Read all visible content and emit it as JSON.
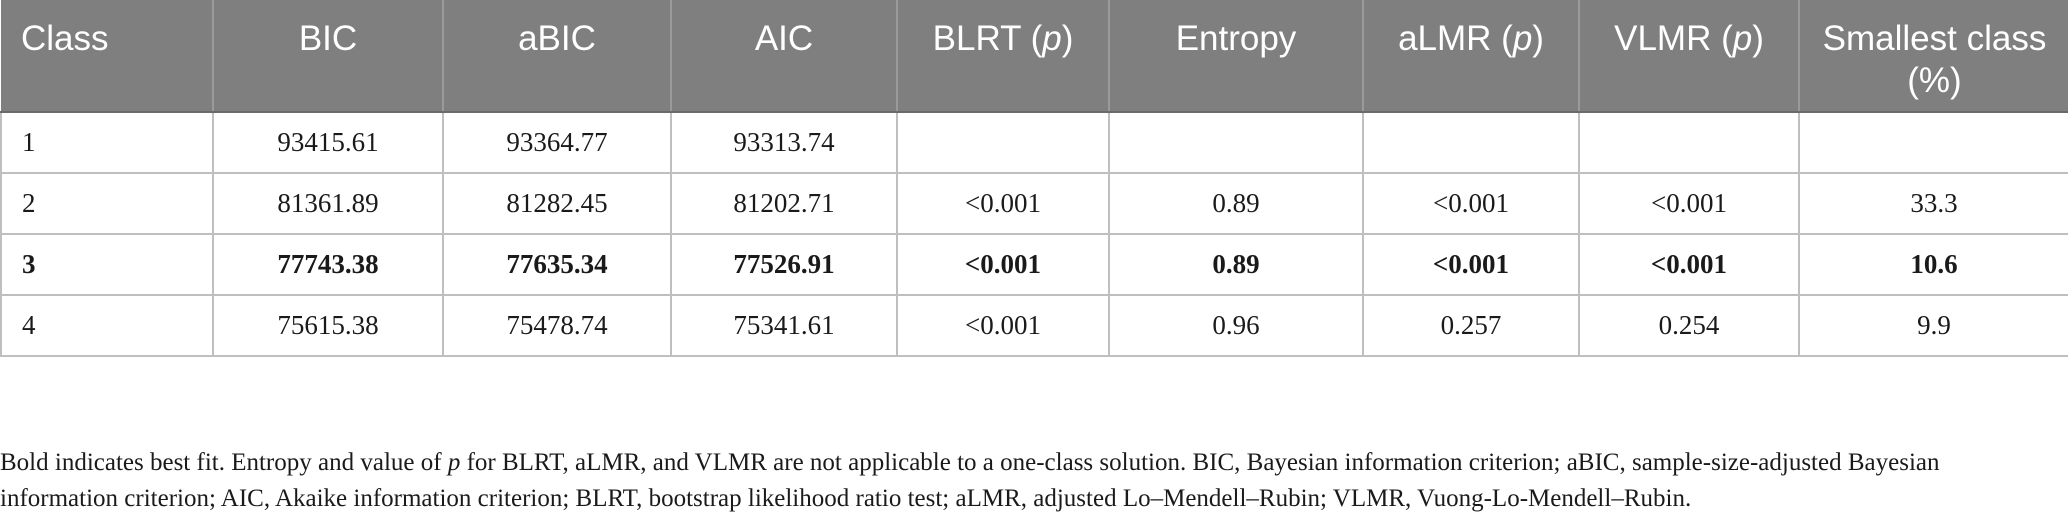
{
  "table": {
    "headers": [
      {
        "text": "Class"
      },
      {
        "text": "BIC"
      },
      {
        "text": "aBIC"
      },
      {
        "text": "AIC"
      },
      {
        "prefix": "BLRT (",
        "italic": "p",
        "suffix": ")"
      },
      {
        "text": "Entropy"
      },
      {
        "prefix": "aLMR (",
        "italic": "p",
        "suffix": ")"
      },
      {
        "prefix": "VLMR (",
        "italic": "p",
        "suffix": ")"
      },
      {
        "text": "Smallest class (%)"
      }
    ],
    "rows": [
      [
        "1",
        "93415.61",
        "93364.77",
        "93313.74",
        "",
        "",
        "",
        "",
        ""
      ],
      [
        "2",
        "81361.89",
        "81282.45",
        "81202.71",
        "<0.001",
        "0.89",
        "<0.001",
        "<0.001",
        "33.3"
      ],
      [
        "3",
        "77743.38",
        "77635.34",
        "77526.91",
        "<0.001",
        "0.89",
        "<0.001",
        "<0.001",
        "10.6"
      ],
      [
        "4",
        "75615.38",
        "75478.74",
        "75341.61",
        "<0.001",
        "0.96",
        "0.257",
        "0.254",
        "9.9"
      ]
    ],
    "bold_row_index": 2
  },
  "footnote": {
    "part1": "Bold indicates best fit. Entropy and value of ",
    "italic": "p",
    "part2": " for BLRT, aLMR, and VLMR are not applicable to a one-class solution. BIC, Bayesian information criterion; aBIC, sample-size-adjusted Bayesian information criterion; AIC, Akaike information criterion; BLRT, bootstrap likelihood ratio test; aLMR, adjusted Lo–Mendell–Rubin; VLMR, Vuong-Lo-Mendell–Rubin."
  },
  "colors": {
    "header_bg": "#7f7f7f",
    "header_text": "#ffffff",
    "grid_line": "#bfbfbf"
  }
}
